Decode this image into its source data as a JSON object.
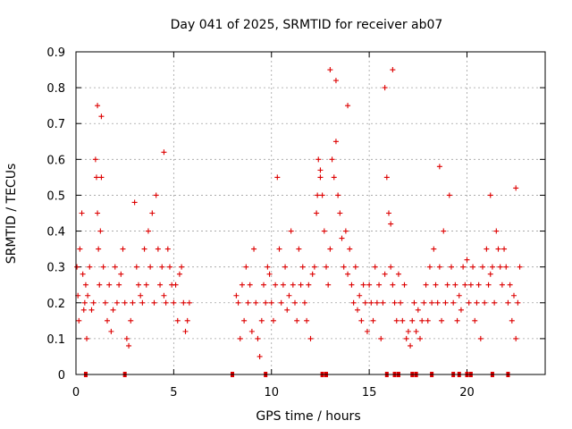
{
  "chart_data": {
    "type": "scatter",
    "title": "Day 041 of 2025, SRMTID for receiver ab07",
    "xlabel": "GPS time / hours",
    "ylabel": "SRMTID / TECUs",
    "xlim": [
      0,
      24
    ],
    "ylim": [
      0,
      0.9
    ],
    "xticks": [
      0,
      5,
      10,
      15,
      20
    ],
    "yticks": [
      0,
      0.1,
      0.2,
      0.3,
      0.4,
      0.5,
      0.6,
      0.7,
      0.8,
      0.9
    ],
    "grid": true,
    "marker": "+",
    "color": "#dd0000",
    "series": [
      {
        "name": "SRMTID",
        "x": [
          0.05,
          0.1,
          0.15,
          0.2,
          0.3,
          0.35,
          0.4,
          0.45,
          0.5,
          0.55,
          0.6,
          0.7,
          0.8,
          0.9,
          1.0,
          1.05,
          1.1,
          1.15,
          1.2,
          1.25,
          1.3,
          1.4,
          1.5,
          1.6,
          1.7,
          1.8,
          1.9,
          2.0,
          2.1,
          2.2,
          2.3,
          2.4,
          2.5,
          2.6,
          2.7,
          2.8,
          2.9,
          3.0,
          3.1,
          3.2,
          3.3,
          3.4,
          3.5,
          3.6,
          3.7,
          3.8,
          3.9,
          4.0,
          4.1,
          4.2,
          4.3,
          4.4,
          4.5,
          4.6,
          4.7,
          4.8,
          4.9,
          5.0,
          5.1,
          5.2,
          5.3,
          5.4,
          5.5,
          5.6,
          5.7,
          5.8,
          8.2,
          8.3,
          8.4,
          8.5,
          8.6,
          8.7,
          8.8,
          8.9,
          9.0,
          9.1,
          9.2,
          9.3,
          9.4,
          9.5,
          9.6,
          9.7,
          9.8,
          9.9,
          10.0,
          10.1,
          10.2,
          10.3,
          10.4,
          10.5,
          10.6,
          10.7,
          10.8,
          10.9,
          11.0,
          11.1,
          11.2,
          11.3,
          11.4,
          11.5,
          11.6,
          11.7,
          11.8,
          11.9,
          12.0,
          12.1,
          12.2,
          12.3,
          12.4,
          12.5,
          12.6,
          12.7,
          12.8,
          12.9,
          13.0,
          13.1,
          13.2,
          13.3,
          13.4,
          13.5,
          13.6,
          13.7,
          13.8,
          13.9,
          14.0,
          14.1,
          14.2,
          14.3,
          14.4,
          14.5,
          14.6,
          14.7,
          14.8,
          14.9,
          15.0,
          15.1,
          15.2,
          15.3,
          15.4,
          15.5,
          15.6,
          15.7,
          15.8,
          15.9,
          16.0,
          16.1,
          16.2,
          16.3,
          16.4,
          16.5,
          16.6,
          16.7,
          16.8,
          16.9,
          17.0,
          17.1,
          17.2,
          17.3,
          17.4,
          17.5,
          17.6,
          17.7,
          17.8,
          17.9,
          18.0,
          18.1,
          18.2,
          18.3,
          18.4,
          18.5,
          18.6,
          18.7,
          18.8,
          18.9,
          19.0,
          19.1,
          19.2,
          19.3,
          19.4,
          19.5,
          19.6,
          19.7,
          19.8,
          19.9,
          20.0,
          20.1,
          20.2,
          20.3,
          20.4,
          20.5,
          20.6,
          20.7,
          20.8,
          20.9,
          21.0,
          21.1,
          21.2,
          21.3,
          21.4,
          21.5,
          21.6,
          21.7,
          21.8,
          21.9,
          22.0,
          22.1,
          22.2,
          22.3,
          22.4,
          22.5,
          22.6,
          22.7,
          12.3,
          12.35,
          13.0,
          13.3,
          13.9,
          15.8,
          16.2,
          1.1,
          1.3,
          4.5,
          12.5,
          16.1,
          18.6,
          21.2,
          22.5
        ],
        "y": [
          0.3,
          0.22,
          0.15,
          0.35,
          0.45,
          0.28,
          0.18,
          0.2,
          0.25,
          0.1,
          0.22,
          0.3,
          0.18,
          0.2,
          0.6,
          0.55,
          0.45,
          0.35,
          0.25,
          0.4,
          0.55,
          0.3,
          0.2,
          0.15,
          0.25,
          0.12,
          0.18,
          0.3,
          0.2,
          0.25,
          0.28,
          0.35,
          0.2,
          0.1,
          0.08,
          0.15,
          0.2,
          0.48,
          0.3,
          0.25,
          0.22,
          0.2,
          0.35,
          0.25,
          0.4,
          0.3,
          0.45,
          0.2,
          0.5,
          0.35,
          0.25,
          0.3,
          0.22,
          0.2,
          0.35,
          0.3,
          0.25,
          0.2,
          0.25,
          0.15,
          0.28,
          0.3,
          0.2,
          0.12,
          0.15,
          0.2,
          0.22,
          0.2,
          0.1,
          0.25,
          0.15,
          0.3,
          0.2,
          0.25,
          0.12,
          0.35,
          0.2,
          0.1,
          0.05,
          0.15,
          0.25,
          0.2,
          0.3,
          0.28,
          0.2,
          0.15,
          0.25,
          0.55,
          0.35,
          0.2,
          0.25,
          0.3,
          0.18,
          0.22,
          0.4,
          0.25,
          0.2,
          0.15,
          0.35,
          0.25,
          0.3,
          0.2,
          0.15,
          0.25,
          0.1,
          0.28,
          0.3,
          0.45,
          0.6,
          0.55,
          0.5,
          0.4,
          0.3,
          0.25,
          0.35,
          0.6,
          0.55,
          0.65,
          0.5,
          0.45,
          0.38,
          0.3,
          0.4,
          0.28,
          0.35,
          0.25,
          0.2,
          0.3,
          0.18,
          0.22,
          0.15,
          0.25,
          0.2,
          0.12,
          0.25,
          0.2,
          0.15,
          0.3,
          0.2,
          0.25,
          0.1,
          0.2,
          0.28,
          0.55,
          0.45,
          0.3,
          0.25,
          0.2,
          0.15,
          0.28,
          0.2,
          0.15,
          0.25,
          0.1,
          0.12,
          0.08,
          0.15,
          0.2,
          0.12,
          0.18,
          0.1,
          0.15,
          0.2,
          0.25,
          0.15,
          0.3,
          0.2,
          0.35,
          0.25,
          0.2,
          0.3,
          0.15,
          0.4,
          0.2,
          0.25,
          0.5,
          0.3,
          0.2,
          0.25,
          0.15,
          0.22,
          0.18,
          0.3,
          0.25,
          0.32,
          0.2,
          0.25,
          0.3,
          0.15,
          0.2,
          0.25,
          0.1,
          0.3,
          0.2,
          0.35,
          0.25,
          0.28,
          0.3,
          0.2,
          0.4,
          0.35,
          0.3,
          0.25,
          0.35,
          0.3,
          0.2,
          0.25,
          0.15,
          0.22,
          0.1,
          0.2,
          0.3,
          0.45,
          0.5,
          0.85,
          0.82,
          0.75,
          0.8,
          0.85,
          0.75,
          0.72,
          0.62,
          0.57,
          0.42,
          0.58,
          0.5,
          0.52
        ],
        "zero_x": [
          0.5,
          2.5,
          8.0,
          9.7,
          12.6,
          12.8,
          15.9,
          16.3,
          16.5,
          17.2,
          17.4,
          18.2,
          19.3,
          19.6,
          20.0,
          20.2,
          21.3,
          22.1
        ]
      }
    ]
  }
}
